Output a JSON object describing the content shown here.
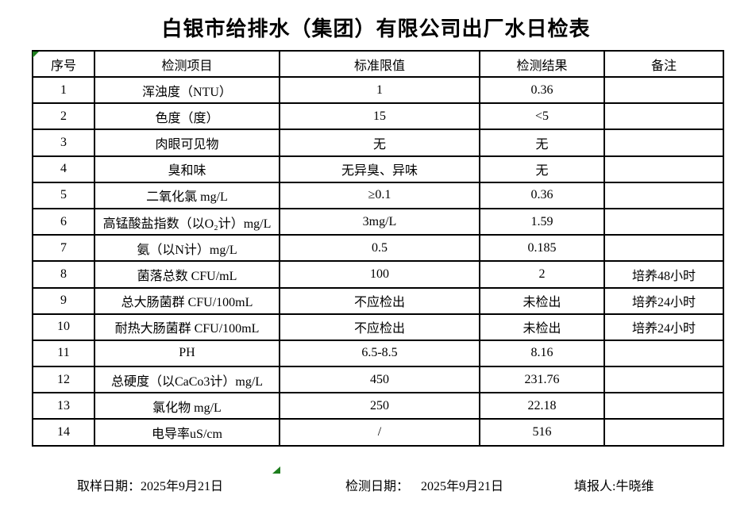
{
  "title": "白银市给排水（集团）有限公司出厂水日检表",
  "table": {
    "headers": [
      "序号",
      "检测项目",
      "标准限值",
      "检测结果",
      "备注"
    ],
    "rows": [
      [
        "1",
        "浑浊度（NTU）",
        "1",
        "0.36",
        ""
      ],
      [
        "2",
        "色度（度）",
        "15",
        "<5",
        ""
      ],
      [
        "3",
        "肉眼可见物",
        "无",
        "无",
        ""
      ],
      [
        "4",
        "臭和味",
        "无异臭、异味",
        "无",
        ""
      ],
      [
        "5",
        "二氧化氯 mg/L",
        "≥0.1",
        "0.36",
        ""
      ],
      [
        "6",
        "高锰酸盐指数（以O₂计）mg/L",
        "3mg/L",
        "1.59",
        ""
      ],
      [
        "7",
        "氨（以N计）mg/L",
        "0.5",
        "0.185",
        ""
      ],
      [
        "8",
        "菌落总数 CFU/mL",
        "100",
        "2",
        "培养48小时"
      ],
      [
        "9",
        "总大肠菌群 CFU/100mL",
        "不应检出",
        "未检出",
        "培养24小时"
      ],
      [
        "10",
        "耐热大肠菌群 CFU/100mL",
        "不应检出",
        "未检出",
        "培养24小时"
      ],
      [
        "11",
        "PH",
        "6.5-8.5",
        "8.16",
        ""
      ],
      [
        "12",
        "总硬度（以CaCo3计）mg/L",
        "450",
        "231.76",
        ""
      ],
      [
        "13",
        "氯化物 mg/L",
        "250",
        "22.18",
        ""
      ],
      [
        "14",
        "电导率uS/cm",
        "/",
        "516",
        ""
      ]
    ]
  },
  "footer": {
    "sample_date_label": "取样日期：",
    "sample_date_value": "2025年9月21日",
    "test_date_label": "检测日期：",
    "test_date_value": "2025年9月21日",
    "reporter_label": "填报人:",
    "reporter_value": "牛晓维"
  },
  "colors": {
    "marker_green": "#1e7e1e",
    "border": "#000000"
  }
}
